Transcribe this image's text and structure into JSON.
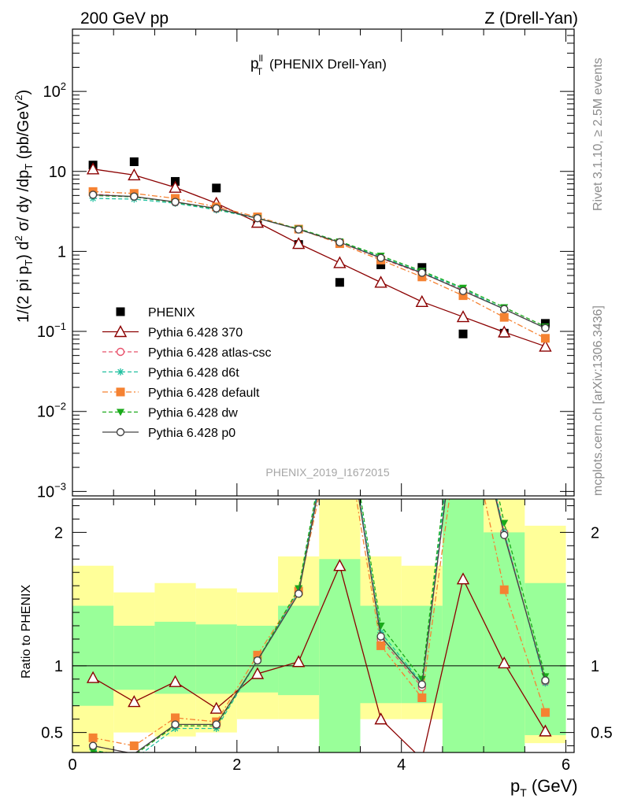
{
  "header": {
    "left": "200 GeV pp",
    "right": "Z (Drell-Yan)"
  },
  "side_text": {
    "rivet": "Rivet 3.1.10, ≥ 2.5M events",
    "source": "mcplots.cern.ch [arXiv:1306.3436]"
  },
  "watermark": "PHENIX_2019_I1672015",
  "chart_data": [
    {
      "type": "scatter",
      "title_main": "p",
      "title_sup": "ll",
      "title_sub": "T",
      "title_rest": " (PHENIX Drell-Yan)",
      "ylabel": "1/(2 pi p_T) d^2 σ/ dy /dp_T (pb/GeV^2)",
      "yscale": "log",
      "ylim": [
        0.00088,
        600
      ],
      "xlim": [
        0,
        6.1
      ],
      "y_ticks": [
        {
          "v": 0.001,
          "base": "10",
          "exp": "−3"
        },
        {
          "v": 0.01,
          "base": "10",
          "exp": "−2"
        },
        {
          "v": 0.1,
          "base": "10",
          "exp": "−1"
        },
        {
          "v": 1,
          "base": "1",
          "exp": ""
        },
        {
          "v": 10,
          "base": "10",
          "exp": ""
        },
        {
          "v": 100,
          "base": "10",
          "exp": "2"
        }
      ],
      "legend_position": "bottom-left",
      "x": [
        0.25,
        0.75,
        1.25,
        1.75,
        2.25,
        2.75,
        3.25,
        3.75,
        4.25,
        4.75,
        5.25,
        5.75
      ],
      "series": [
        {
          "name": "PHENIX",
          "color": "#000000",
          "marker": "square-filled",
          "line": "none",
          "values": [
            12.0,
            13.2,
            7.5,
            6.2,
            2.5,
            1.22,
            0.41,
            0.68,
            0.63,
            0.093,
            0.095,
            0.126
          ]
        },
        {
          "name": "Pythia 6.428 370",
          "color": "#8b0000",
          "marker": "triangle-open",
          "line": "solid",
          "values": [
            10.7,
            9.0,
            6.3,
            4.0,
            2.3,
            1.25,
            0.72,
            0.41,
            0.235,
            0.152,
            0.098,
            0.065
          ]
        },
        {
          "name": "Pythia 6.428 atlas-csc",
          "color": "#e8506a",
          "marker": "circle-open",
          "line": "dashed",
          "values": [
            5.2,
            4.8,
            4.1,
            3.4,
            2.6,
            1.9,
            1.3,
            0.82,
            0.53,
            0.33,
            0.19,
            0.11
          ]
        },
        {
          "name": "Pythia 6.428 d6t",
          "color": "#20c0a0",
          "marker": "star",
          "line": "dashed",
          "values": [
            4.6,
            4.5,
            4.0,
            3.3,
            2.6,
            1.9,
            1.31,
            0.85,
            0.55,
            0.34,
            0.19,
            0.11
          ]
        },
        {
          "name": "Pythia 6.428 default",
          "color": "#f58232",
          "marker": "square-filled",
          "line": "dashdot",
          "values": [
            5.6,
            5.3,
            4.6,
            3.6,
            2.7,
            1.9,
            1.25,
            0.78,
            0.48,
            0.28,
            0.15,
            0.082
          ]
        },
        {
          "name": "Pythia 6.428 dw",
          "color": "#1aaa1a",
          "marker": "triangle-down-filled",
          "line": "dashed",
          "values": [
            5.0,
            4.8,
            4.1,
            3.4,
            2.6,
            1.92,
            1.33,
            0.88,
            0.57,
            0.35,
            0.2,
            0.115
          ]
        },
        {
          "name": "Pythia 6.428 p0",
          "color": "#444444",
          "marker": "circle-open",
          "line": "solid",
          "values": [
            5.1,
            4.85,
            4.15,
            3.45,
            2.6,
            1.88,
            1.3,
            0.83,
            0.54,
            0.32,
            0.19,
            0.11
          ]
        }
      ]
    },
    {
      "type": "line",
      "ylabel": "Ratio to PHENIX",
      "ylim": [
        0.35,
        2.25
      ],
      "xlim": [
        0,
        6.1
      ],
      "xlabel_main": "p",
      "xlabel_sub": "T",
      "xlabel_rest": " (GeV)",
      "x_ticks": [
        0,
        2,
        4,
        6
      ],
      "y_ticks": [
        0.5,
        1,
        2
      ],
      "reference_line": 1,
      "bands": [
        {
          "x0": 0.0,
          "x1": 0.5,
          "yellow": [
            0.28,
            1.75
          ],
          "green": [
            0.7,
            1.45
          ]
        },
        {
          "x0": 0.5,
          "x1": 1.0,
          "yellow": [
            0.5,
            1.55
          ],
          "green": [
            0.82,
            1.3
          ]
        },
        {
          "x0": 1.0,
          "x1": 1.5,
          "yellow": [
            0.47,
            1.62
          ],
          "green": [
            0.79,
            1.33
          ]
        },
        {
          "x0": 1.5,
          "x1": 2.0,
          "yellow": [
            0.5,
            1.58
          ],
          "green": [
            0.79,
            1.31
          ]
        },
        {
          "x0": 2.0,
          "x1": 2.5,
          "yellow": [
            0.6,
            1.55
          ],
          "green": [
            0.8,
            1.3
          ]
        },
        {
          "x0": 2.5,
          "x1": 3.0,
          "yellow": [
            0.6,
            1.82
          ],
          "green": [
            0.78,
            1.45
          ]
        },
        {
          "x0": 3.0,
          "x1": 3.5,
          "yellow": [
            0.0,
            3.0
          ],
          "green": [
            0.0,
            1.8
          ]
        },
        {
          "x0": 3.5,
          "x1": 4.0,
          "yellow": [
            0.6,
            1.82
          ],
          "green": [
            0.72,
            1.45
          ]
        },
        {
          "x0": 4.0,
          "x1": 4.5,
          "yellow": [
            0.6,
            1.75
          ],
          "green": [
            0.72,
            1.45
          ]
        },
        {
          "x0": 4.5,
          "x1": 5.0,
          "yellow": [
            0.0,
            3.0
          ],
          "green": [
            0.0,
            2.4
          ]
        },
        {
          "x0": 5.0,
          "x1": 5.5,
          "yellow": [
            0.22,
            2.3
          ],
          "green": [
            0.33,
            2.0
          ]
        },
        {
          "x0": 5.5,
          "x1": 6.0,
          "yellow": [
            0.42,
            2.05
          ],
          "green": [
            0.48,
            1.62
          ]
        }
      ],
      "series": [
        {
          "name": "Pythia 6.428 370",
          "color": "#8b0000",
          "marker": "triangle-open",
          "line": "solid",
          "values": [
            0.91,
            0.73,
            0.88,
            0.68,
            0.94,
            1.03,
            1.75,
            0.6,
            0.3,
            1.65,
            1.02,
            0.51
          ]
        },
        {
          "name": "Pythia 6.428 atlas-csc",
          "color": "#e8506a",
          "marker": "circle-open",
          "line": "dashed",
          "values": [
            0.4,
            0.34,
            0.55,
            0.55,
            1.04,
            1.56,
            3.2,
            1.2,
            0.84,
            3.3,
            2.0,
            0.88
          ]
        },
        {
          "name": "Pythia 6.428 d6t",
          "color": "#20c0a0",
          "marker": "star",
          "line": "dashed",
          "values": [
            0.37,
            0.3,
            0.53,
            0.53,
            1.04,
            1.56,
            3.2,
            1.25,
            0.87,
            3.4,
            2.0,
            0.87
          ]
        },
        {
          "name": "Pythia 6.428 default",
          "color": "#f58232",
          "marker": "square-filled",
          "line": "dashdot",
          "values": [
            0.46,
            0.4,
            0.61,
            0.58,
            1.08,
            1.56,
            3.0,
            1.15,
            0.76,
            3.0,
            1.57,
            0.65
          ]
        },
        {
          "name": "Pythia 6.428 dw",
          "color": "#1aaa1a",
          "marker": "triangle-down-filled",
          "line": "dashed",
          "values": [
            0.36,
            0.33,
            0.55,
            0.55,
            1.04,
            1.58,
            3.25,
            1.3,
            0.9,
            3.5,
            2.07,
            0.92
          ]
        },
        {
          "name": "Pythia 6.428 p0",
          "color": "#444444",
          "marker": "circle-open",
          "line": "solid",
          "values": [
            0.4,
            0.34,
            0.56,
            0.56,
            1.04,
            1.54,
            3.15,
            1.22,
            0.86,
            3.3,
            1.98,
            0.89
          ]
        }
      ]
    }
  ]
}
